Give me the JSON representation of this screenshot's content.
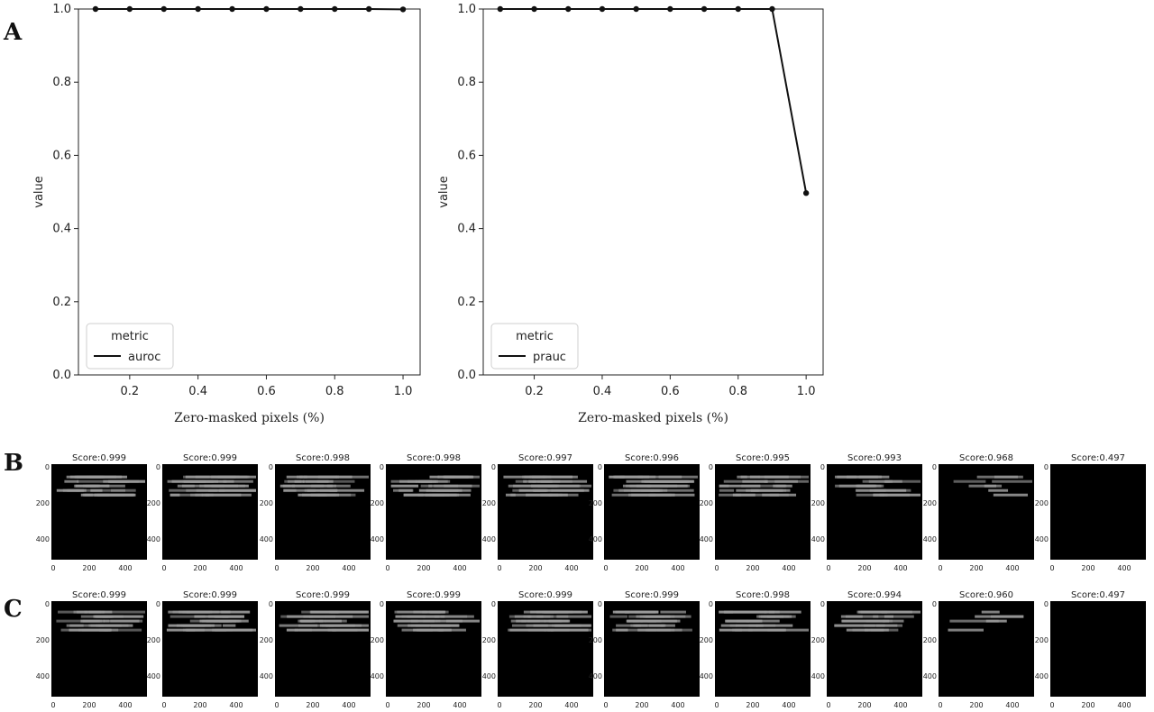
{
  "panels": {
    "A": "A",
    "B": "B",
    "C": "C"
  },
  "colors": {
    "line": "#111111",
    "background": "#ffffff",
    "thumb_bg": "#000000",
    "tissue": "#9a9a9a"
  },
  "chart_data": [
    {
      "type": "line",
      "x": [
        0.1,
        0.2,
        0.3,
        0.4,
        0.5,
        0.6,
        0.7,
        0.8,
        0.9,
        1.0
      ],
      "series": [
        {
          "name": "auroc",
          "values": [
            1.0,
            1.0,
            1.0,
            1.0,
            1.0,
            1.0,
            1.0,
            1.0,
            1.0,
            0.999
          ]
        }
      ],
      "xlabel": "Zero-masked pixels (%)",
      "ylabel": "value",
      "xticks": [
        "0.2",
        "0.4",
        "0.6",
        "0.8",
        "1.0"
      ],
      "yticks": [
        "0.0",
        "0.2",
        "0.4",
        "0.6",
        "0.8",
        "1.0"
      ],
      "xlim": [
        0.05,
        1.05
      ],
      "ylim": [
        0.0,
        1.0
      ],
      "legend": {
        "title": "metric",
        "placement": "lower-left"
      },
      "grid": false
    },
    {
      "type": "line",
      "x": [
        0.1,
        0.2,
        0.3,
        0.4,
        0.5,
        0.6,
        0.7,
        0.8,
        0.9,
        1.0
      ],
      "series": [
        {
          "name": "prauc",
          "values": [
            1.0,
            1.0,
            1.0,
            1.0,
            1.0,
            1.0,
            1.0,
            1.0,
            1.0,
            0.497
          ]
        }
      ],
      "xlabel": "Zero-masked pixels (%)",
      "ylabel": "value",
      "xticks": [
        "0.2",
        "0.4",
        "0.6",
        "0.8",
        "1.0"
      ],
      "yticks": [
        "0.0",
        "0.2",
        "0.4",
        "0.6",
        "0.8",
        "1.0"
      ],
      "xlim": [
        0.05,
        1.05
      ],
      "ylim": [
        0.0,
        1.0
      ],
      "legend": {
        "title": "metric",
        "placement": "lower-left"
      },
      "grid": false
    }
  ],
  "rows": {
    "B": {
      "titles": [
        "Score:0.999",
        "Score:0.999",
        "Score:0.998",
        "Score:0.998",
        "Score:0.997",
        "Score:0.996",
        "Score:0.995",
        "Score:0.993",
        "Score:0.968",
        "Score:0.497"
      ],
      "masked_fraction": [
        0.1,
        0.2,
        0.3,
        0.4,
        0.5,
        0.6,
        0.7,
        0.8,
        0.9,
        1.0
      ]
    },
    "C": {
      "titles": [
        "Score:0.999",
        "Score:0.999",
        "Score:0.999",
        "Score:0.999",
        "Score:0.999",
        "Score:0.999",
        "Score:0.998",
        "Score:0.994",
        "Score:0.960",
        "Score:0.497"
      ],
      "masked_fraction": [
        0.1,
        0.2,
        0.3,
        0.4,
        0.5,
        0.6,
        0.7,
        0.8,
        0.9,
        1.0
      ]
    }
  },
  "thumb_axes": {
    "xticks": [
      "0",
      "200",
      "400"
    ],
    "yticks": [
      "0",
      "200",
      "400"
    ]
  }
}
